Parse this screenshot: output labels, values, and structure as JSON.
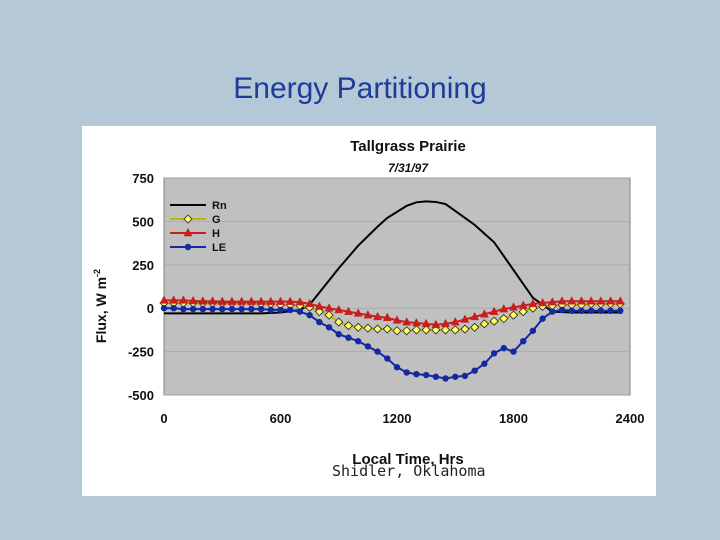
{
  "slide": {
    "title": "Energy Partitioning",
    "note": "Shidler, Oklahoma"
  },
  "colors": {
    "background": "#b4c8d8",
    "title": "#1e3c96",
    "plot_area": "#c0c0c0",
    "rn": "#000000",
    "g_fill": "#ffff66",
    "h": "#c81e1e",
    "le": "#1428a0"
  },
  "chart_data": {
    "type": "line",
    "title": "Tallgrass Prairie",
    "subtitle": "7/31/97",
    "xlabel": "Local Time, Hrs",
    "ylabel": "Flux, W m",
    "ylabel_sup": "-2",
    "xlim": [
      0,
      2400
    ],
    "ylim": [
      -500,
      750
    ],
    "xticks": [
      0,
      600,
      1200,
      1800,
      2400
    ],
    "yticks": [
      -500,
      -250,
      0,
      250,
      500,
      750
    ],
    "legend_position": "top-left",
    "series": [
      {
        "name": "Rn",
        "marker": "none",
        "color": "#000000",
        "x": [
          0,
          100,
          200,
          300,
          400,
          500,
          600,
          700,
          750,
          800,
          900,
          1000,
          1100,
          1150,
          1200,
          1250,
          1300,
          1350,
          1400,
          1450,
          1500,
          1600,
          1700,
          1750,
          1800,
          1850,
          1900,
          1950,
          2000,
          2100,
          2200,
          2300,
          2350
        ],
        "values": [
          -30,
          -30,
          -30,
          -30,
          -30,
          -30,
          -25,
          -10,
          20,
          90,
          230,
          360,
          470,
          520,
          555,
          590,
          610,
          615,
          612,
          600,
          560,
          480,
          380,
          300,
          220,
          140,
          60,
          20,
          -20,
          -25,
          -25,
          -25,
          -25
        ]
      },
      {
        "name": "G",
        "marker": "diamond",
        "color": "#ffff66",
        "x": [
          0,
          50,
          100,
          150,
          200,
          250,
          300,
          350,
          400,
          450,
          500,
          550,
          600,
          650,
          700,
          750,
          800,
          850,
          900,
          950,
          1000,
          1050,
          1100,
          1150,
          1200,
          1250,
          1300,
          1350,
          1400,
          1450,
          1500,
          1550,
          1600,
          1650,
          1700,
          1750,
          1800,
          1850,
          1900,
          1950,
          2000,
          2050,
          2100,
          2150,
          2200,
          2250,
          2300,
          2350
        ],
        "values": [
          30,
          30,
          30,
          30,
          30,
          30,
          30,
          30,
          30,
          30,
          25,
          25,
          20,
          20,
          15,
          5,
          -20,
          -40,
          -80,
          -100,
          -110,
          -115,
          -120,
          -120,
          -130,
          -130,
          -125,
          -125,
          -125,
          -125,
          -125,
          -120,
          -110,
          -90,
          -75,
          -60,
          -40,
          -20,
          0,
          10,
          15,
          20,
          20,
          20,
          25,
          25,
          25,
          25
        ]
      },
      {
        "name": "H",
        "marker": "triangle",
        "color": "#c81e1e",
        "x": [
          0,
          50,
          100,
          150,
          200,
          250,
          300,
          350,
          400,
          450,
          500,
          550,
          600,
          650,
          700,
          750,
          800,
          850,
          900,
          950,
          1000,
          1050,
          1100,
          1150,
          1200,
          1250,
          1300,
          1350,
          1400,
          1450,
          1500,
          1550,
          1600,
          1650,
          1700,
          1750,
          1800,
          1850,
          1900,
          1950,
          2000,
          2050,
          2100,
          2150,
          2200,
          2250,
          2300,
          2350
        ],
        "values": [
          45,
          45,
          45,
          42,
          40,
          40,
          38,
          38,
          38,
          38,
          38,
          38,
          38,
          38,
          35,
          25,
          10,
          0,
          -10,
          -20,
          -30,
          -40,
          -50,
          -55,
          -70,
          -80,
          -85,
          -90,
          -95,
          -90,
          -80,
          -65,
          -50,
          -35,
          -20,
          -5,
          5,
          15,
          25,
          30,
          35,
          40,
          40,
          40,
          40,
          40,
          40,
          40
        ]
      },
      {
        "name": "LE",
        "marker": "circle",
        "color": "#1428a0",
        "x": [
          0,
          50,
          100,
          150,
          200,
          250,
          300,
          350,
          400,
          450,
          500,
          550,
          600,
          650,
          700,
          750,
          800,
          850,
          900,
          950,
          1000,
          1050,
          1100,
          1150,
          1200,
          1250,
          1300,
          1350,
          1400,
          1450,
          1500,
          1550,
          1600,
          1650,
          1700,
          1750,
          1800,
          1850,
          1900,
          1950,
          2000,
          2050,
          2100,
          2150,
          2200,
          2250,
          2300,
          2350
        ],
        "values": [
          0,
          0,
          -5,
          -5,
          -5,
          -5,
          -5,
          -5,
          -5,
          -5,
          -5,
          -10,
          -10,
          -10,
          -20,
          -40,
          -80,
          -110,
          -150,
          -170,
          -190,
          -220,
          -250,
          -290,
          -340,
          -370,
          -380,
          -385,
          -395,
          -405,
          -395,
          -390,
          -360,
          -320,
          -260,
          -230,
          -250,
          -190,
          -130,
          -60,
          -20,
          -10,
          -15,
          -15,
          -15,
          -15,
          -15,
          -15
        ]
      }
    ]
  }
}
